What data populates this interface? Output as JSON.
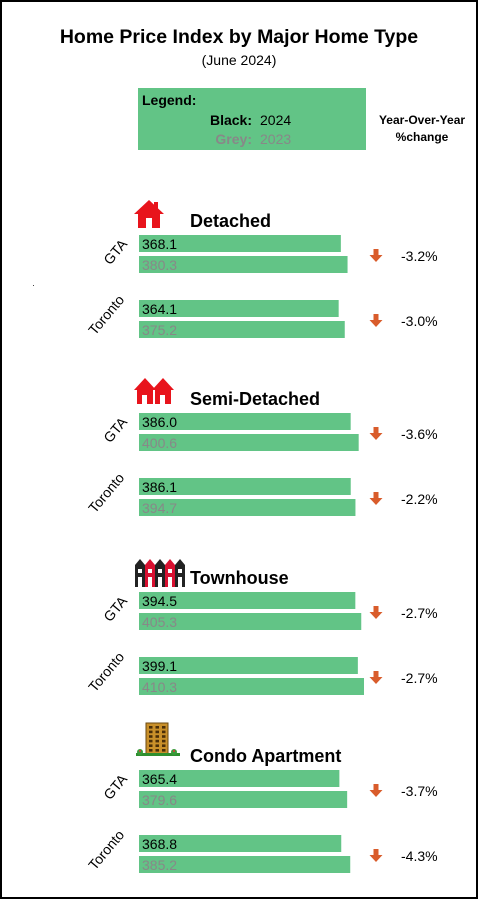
{
  "chart_data": {
    "type": "bar",
    "title": "Home Price Index by Major Home Type",
    "subtitle": "(June 2024)",
    "legend": {
      "title": "Legend:",
      "entries": [
        {
          "key": "Black:",
          "value": "2024",
          "color": "#000000"
        },
        {
          "key": "Grey:",
          "value": "2023",
          "color": "#888888"
        }
      ]
    },
    "yoy_header": [
      "Year-Over-Year",
      "%change"
    ],
    "bar_color": "#62c486",
    "arrow_color": "#d95c2b",
    "groups": [
      {
        "name": "Detached",
        "icon": "detached-house-icon",
        "rows": [
          {
            "region": "GTA",
            "v2024": 368.1,
            "v2023": 380.3,
            "yoy": "-3.2%"
          },
          {
            "region": "Toronto",
            "v2024": 364.1,
            "v2023": 375.2,
            "yoy": "-3.0%"
          }
        ]
      },
      {
        "name": "Semi-Detached",
        "icon": "semi-detached-house-icon",
        "rows": [
          {
            "region": "GTA",
            "v2024": 386.0,
            "v2023": 400.6,
            "yoy": "-3.6%"
          },
          {
            "region": "Toronto",
            "v2024": 386.1,
            "v2023": 394.7,
            "yoy": "-2.2%"
          }
        ]
      },
      {
        "name": "Townhouse",
        "icon": "townhouse-icon",
        "rows": [
          {
            "region": "GTA",
            "v2024": 394.5,
            "v2023": 405.3,
            "yoy": "-2.7%"
          },
          {
            "region": "Toronto",
            "v2024": 399.1,
            "v2023": 410.3,
            "yoy": "-2.7%"
          }
        ]
      },
      {
        "name": "Condo Apartment",
        "icon": "condo-building-icon",
        "rows": [
          {
            "region": "GTA",
            "v2024": 365.4,
            "v2023": 379.6,
            "yoy": "-3.7%"
          },
          {
            "region": "Toronto",
            "v2024": 368.8,
            "v2023": 385.2,
            "yoy": "-4.3%"
          }
        ]
      }
    ]
  }
}
